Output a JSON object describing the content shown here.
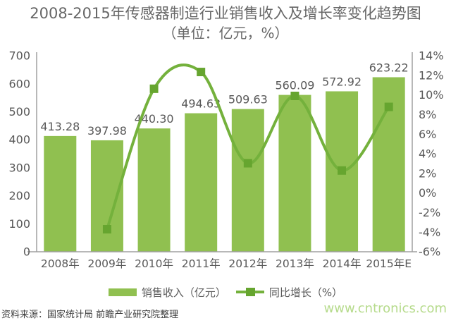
{
  "title": "2008-2015年传感器制造行业销售收入及增长率变化趋势图",
  "subtitle": "（单位：亿元，%）",
  "chart_data": {
    "type": "combo",
    "categories": [
      "2008年",
      "2009年",
      "2010年",
      "2011年",
      "2012年",
      "2013年",
      "2014年",
      "2015年E"
    ],
    "series": [
      {
        "name": "销售收入（亿元）",
        "type": "bar",
        "values": [
          413.28,
          397.98,
          440.3,
          494.63,
          509.63,
          560.09,
          572.92,
          623.22
        ],
        "axis": "left"
      },
      {
        "name": "同比增长（%）",
        "type": "line",
        "values": [
          null,
          -3.7,
          10.63,
          12.34,
          3.03,
          9.9,
          2.29,
          8.78
        ],
        "axis": "right"
      }
    ],
    "data_labels": [
      "413.28",
      "397.98",
      "440.30",
      "494.63",
      "509.63",
      "560.09",
      "572.92",
      "623.22"
    ],
    "left_axis": {
      "min": 0,
      "max": 700,
      "step": 100,
      "ticks": [
        "700",
        "600",
        "500",
        "400",
        "300",
        "200",
        "100",
        "0"
      ]
    },
    "right_axis": {
      "min": -6,
      "max": 14,
      "step": 2,
      "ticks": [
        "14%",
        "12%",
        "10%",
        "8%",
        "6%",
        "4%",
        "2%",
        "0%",
        "-2%",
        "-4%",
        "-6%"
      ]
    },
    "grid": false,
    "legend_position": "bottom",
    "smooth_line": true
  },
  "colors": {
    "bar": "#90c050",
    "line": "#74b13c",
    "marker": "#66a52f",
    "axis": "#a0a0a0",
    "tick_text": "#595959",
    "data_label_text": "#595959",
    "title_text": "#676767",
    "watermark": "#b6db8c"
  },
  "legend": {
    "bar_label": "销售收入（亿元）",
    "line_label": "同比增长（%）"
  },
  "footer": {
    "source": "资料来源：国家统计局 前瞻产业研究院整理",
    "watermark": "www.cntronics.com"
  }
}
